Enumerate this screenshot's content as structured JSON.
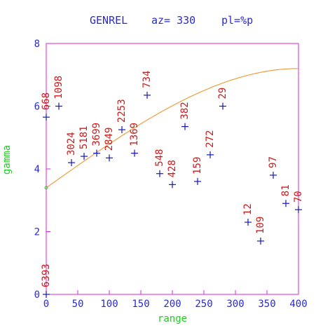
{
  "title_line": {
    "label": "GENREL",
    "az": "az= 330",
    "pl": "pl=%p"
  },
  "chart_data": {
    "type": "scatter",
    "title": "GENREL   az= 330   pl=%p",
    "xlabel": "range",
    "ylabel": "gamma",
    "xlim": [
      0,
      400
    ],
    "ylim": [
      0,
      8
    ],
    "x_ticks": [
      "0",
      "50",
      "100",
      "150",
      "200",
      "250",
      "300",
      "350",
      "400"
    ],
    "y_ticks": [
      "0",
      "2",
      "4",
      "6",
      "8"
    ],
    "grid": false,
    "series": [
      {
        "type": "points",
        "points": [
          {
            "x": 0,
            "y": 0,
            "label": "6393"
          },
          {
            "x": 0,
            "y": 5.65,
            "label": "668"
          },
          {
            "x": 20,
            "y": 6.0,
            "label": "1098"
          },
          {
            "x": 40,
            "y": 4.2,
            "label": "3024"
          },
          {
            "x": 60,
            "y": 4.4,
            "label": "5181"
          },
          {
            "x": 80,
            "y": 4.5,
            "label": "3699"
          },
          {
            "x": 100,
            "y": 4.35,
            "label": "2849"
          },
          {
            "x": 120,
            "y": 5.25,
            "label": "2253"
          },
          {
            "x": 140,
            "y": 4.5,
            "label": "1369"
          },
          {
            "x": 160,
            "y": 6.35,
            "label": "734"
          },
          {
            "x": 180,
            "y": 3.85,
            "label": "548"
          },
          {
            "x": 200,
            "y": 3.5,
            "label": "428"
          },
          {
            "x": 220,
            "y": 5.35,
            "label": "382"
          },
          {
            "x": 240,
            "y": 3.6,
            "label": "159"
          },
          {
            "x": 260,
            "y": 4.45,
            "label": "272"
          },
          {
            "x": 280,
            "y": 6.0,
            "label": "29"
          },
          {
            "x": 320,
            "y": 2.3,
            "label": "12"
          },
          {
            "x": 340,
            "y": 1.7,
            "label": "109"
          },
          {
            "x": 360,
            "y": 3.8,
            "label": "97"
          },
          {
            "x": 380,
            "y": 2.9,
            "label": "81"
          },
          {
            "x": 400,
            "y": 2.7,
            "label": "70"
          }
        ]
      },
      {
        "type": "model-curve",
        "nugget": 3.4,
        "sill": 7.2,
        "range": 400,
        "x_start": 0,
        "x_end": 400
      }
    ],
    "colors": {
      "frame": "#e020e0",
      "title": "#2a2ad0",
      "tick_labels": "#2a2ad0",
      "axis_titles": "#22cc22",
      "points": "#1515c8",
      "point_labels": "#d01818",
      "model": "#f0a040",
      "origin_marker": "#22cc22"
    }
  }
}
